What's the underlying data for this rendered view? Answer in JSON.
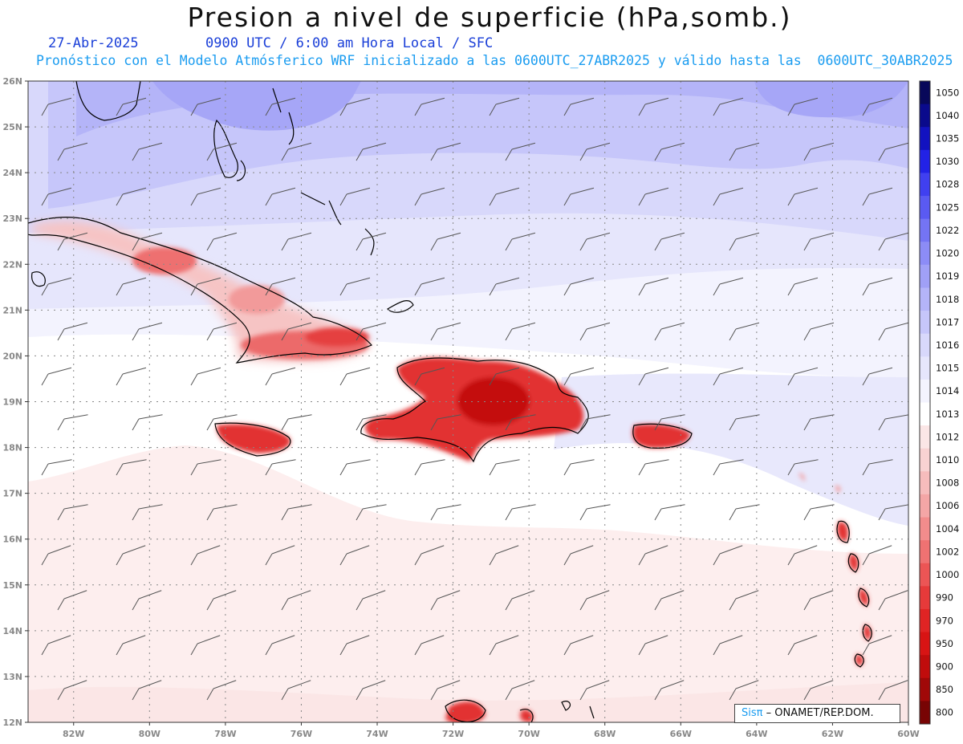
{
  "header": {
    "title": "Presion a nivel de superficie (hPa,somb.)",
    "date": "27-Abr-2025",
    "time": "0900 UTC / 6:00 am Hora Local / SFC",
    "forecast": "Pronóstico con el Modelo Atmósferico WRF inicializado a las 0600UTC_27ABR2025 y válido hasta las  0600UTC_30ABR2025"
  },
  "axes": {
    "lat_labels": [
      "26N",
      "25N",
      "24N",
      "23N",
      "22N",
      "21N",
      "20N",
      "19N",
      "18N",
      "17N",
      "16N",
      "15N",
      "14N",
      "13N",
      "12N"
    ],
    "lon_labels": [
      "82W",
      "80W",
      "78W",
      "76W",
      "74W",
      "72W",
      "70W",
      "68W",
      "66W",
      "64W",
      "62W",
      "60W"
    ],
    "lat_range": [
      12,
      26
    ],
    "lon_range": [
      -83.2,
      -60
    ]
  },
  "colorbar": {
    "levels": [
      "1050",
      "1040",
      "1035",
      "1030",
      "1028",
      "1025",
      "1022",
      "1020",
      "1019",
      "1018",
      "1017",
      "1016",
      "1015",
      "1014",
      "1013",
      "1012",
      "1010",
      "1008",
      "1006",
      "1004",
      "1002",
      "1000",
      "990",
      "970",
      "950",
      "900",
      "850",
      "800"
    ],
    "colors": [
      "#08085a",
      "#0a0a8c",
      "#1212c0",
      "#2222e6",
      "#4040f0",
      "#5a5af2",
      "#7474f4",
      "#8c8cf6",
      "#a0a0f6",
      "#b4b4f8",
      "#c6c6fa",
      "#d8d8fb",
      "#e6e6fc",
      "#f3f3fe",
      "#ffffff",
      "#fbe6e6",
      "#f8d2d2",
      "#f6bcbc",
      "#f4a6a6",
      "#f28c8c",
      "#ef7272",
      "#ec5555",
      "#e63a3a",
      "#e02424",
      "#d81414",
      "#c00c0c",
      "#a00808",
      "#780404"
    ]
  },
  "credit": {
    "sis": "Sisπ",
    "org": " – ONAMET/REP.DOM."
  },
  "icons": {
    "wind": "wind-barb-icon"
  }
}
